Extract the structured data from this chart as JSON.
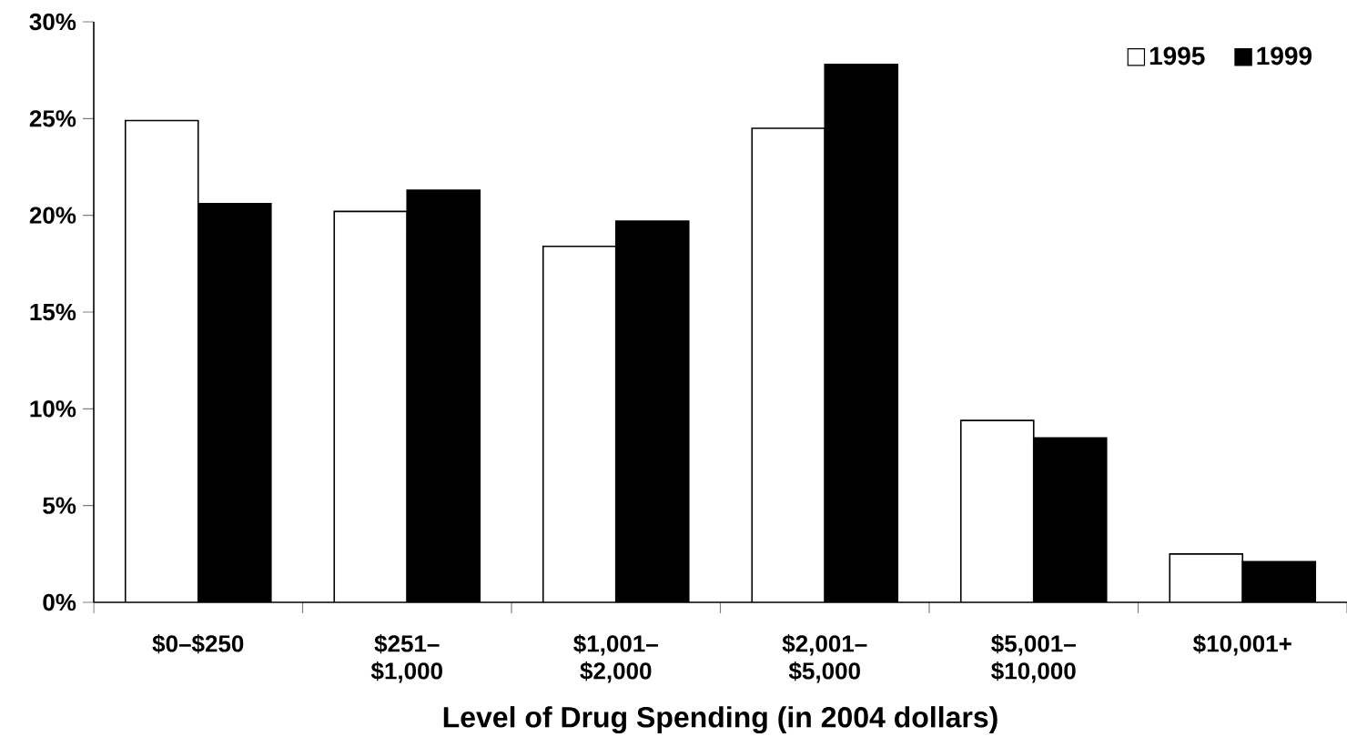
{
  "chart_data": {
    "type": "bar",
    "xlabel": "Level of Drug Spending (in 2004 dollars)",
    "categories": [
      "$0–$250",
      "$251– $1,000",
      "$1,001– $2,000",
      "$2,001– $5,000",
      "$5,001– $10,000",
      "$10,001+"
    ],
    "series": [
      {
        "name": "1995",
        "color": "#ffffff",
        "values": [
          24.9,
          20.2,
          18.4,
          24.5,
          9.4,
          2.5
        ]
      },
      {
        "name": "1999",
        "color": "#000000",
        "values": [
          20.6,
          21.3,
          19.7,
          27.8,
          8.5,
          2.1
        ]
      }
    ],
    "ylim": [
      0,
      30
    ],
    "yticks": [
      {
        "value": 0,
        "label": "0%"
      },
      {
        "value": 5,
        "label": "5%"
      },
      {
        "value": 10,
        "label": "10%"
      },
      {
        "value": 15,
        "label": "15%"
      },
      {
        "value": 20,
        "label": "20%"
      },
      {
        "value": 25,
        "label": "25%"
      },
      {
        "value": 30,
        "label": "30%"
      }
    ],
    "grid": false,
    "legend": "top right"
  }
}
